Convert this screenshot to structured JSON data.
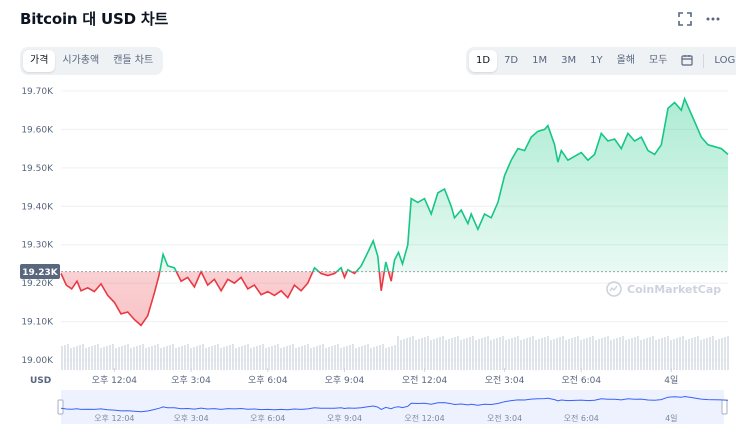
{
  "header": {
    "title": "Bitcoin 대 USD 차트",
    "fullscreen_icon": "expand-icon",
    "more_icon": "more-icon"
  },
  "view_tabs": [
    {
      "label": "가격",
      "active": true
    },
    {
      "label": "시가총액",
      "active": false
    },
    {
      "label": "캔들 차트",
      "active": false
    }
  ],
  "range_tabs": [
    {
      "label": "1D",
      "active": true
    },
    {
      "label": "7D",
      "active": false
    },
    {
      "label": "1M",
      "active": false
    },
    {
      "label": "3M",
      "active": false
    },
    {
      "label": "1Y",
      "active": false
    },
    {
      "label": "올해",
      "active": false
    },
    {
      "label": "모두",
      "active": false
    }
  ],
  "calendar_icon": "calendar-icon",
  "log_label": "LOG",
  "currency_label": "USD",
  "watermark": "CoinMarketCap",
  "colors": {
    "up": "#16c784",
    "down": "#ea3943",
    "reference": "#c0c4cc",
    "volume": "#cfd6e4",
    "navigator": "#3861fb"
  },
  "chart_data": {
    "type": "line",
    "reference_value": 19230,
    "reference_label": "19.23K",
    "ylim": [
      19000,
      19700
    ],
    "yticks": [
      19000,
      19100,
      19200,
      19300,
      19400,
      19500,
      19600,
      19700
    ],
    "ytick_labels": [
      "19.00K",
      "19.10K",
      "19.20K",
      "19.30K",
      "19.40K",
      "19.50K",
      "19.60K",
      "19.70K"
    ],
    "xticks": [
      {
        "t": 0.08,
        "label": "오후 12:04"
      },
      {
        "t": 0.195,
        "label": "오후 3:04"
      },
      {
        "t": 0.31,
        "label": "오후 6:04"
      },
      {
        "t": 0.425,
        "label": "오후 9:04"
      },
      {
        "t": 0.545,
        "label": "오전 12:04"
      },
      {
        "t": 0.665,
        "label": "오전 3:04"
      },
      {
        "t": 0.78,
        "label": "오전 6:04"
      },
      {
        "t": 0.915,
        "label": "4일"
      }
    ],
    "series": [
      {
        "t": 0.0,
        "v": 19225
      },
      {
        "t": 0.008,
        "v": 19195
      },
      {
        "t": 0.016,
        "v": 19185
      },
      {
        "t": 0.024,
        "v": 19205
      },
      {
        "t": 0.03,
        "v": 19180
      },
      {
        "t": 0.04,
        "v": 19188
      },
      {
        "t": 0.05,
        "v": 19178
      },
      {
        "t": 0.06,
        "v": 19198
      },
      {
        "t": 0.07,
        "v": 19168
      },
      {
        "t": 0.08,
        "v": 19150
      },
      {
        "t": 0.09,
        "v": 19120
      },
      {
        "t": 0.1,
        "v": 19125
      },
      {
        "t": 0.11,
        "v": 19105
      },
      {
        "t": 0.12,
        "v": 19090
      },
      {
        "t": 0.13,
        "v": 19115
      },
      {
        "t": 0.14,
        "v": 19175
      },
      {
        "t": 0.147,
        "v": 19220
      },
      {
        "t": 0.153,
        "v": 19275
      },
      {
        "t": 0.16,
        "v": 19245
      },
      {
        "t": 0.17,
        "v": 19240
      },
      {
        "t": 0.18,
        "v": 19205
      },
      {
        "t": 0.19,
        "v": 19215
      },
      {
        "t": 0.2,
        "v": 19190
      },
      {
        "t": 0.21,
        "v": 19230
      },
      {
        "t": 0.22,
        "v": 19195
      },
      {
        "t": 0.23,
        "v": 19210
      },
      {
        "t": 0.24,
        "v": 19180
      },
      {
        "t": 0.25,
        "v": 19210
      },
      {
        "t": 0.26,
        "v": 19200
      },
      {
        "t": 0.27,
        "v": 19215
      },
      {
        "t": 0.28,
        "v": 19185
      },
      {
        "t": 0.29,
        "v": 19195
      },
      {
        "t": 0.3,
        "v": 19170
      },
      {
        "t": 0.31,
        "v": 19178
      },
      {
        "t": 0.32,
        "v": 19168
      },
      {
        "t": 0.33,
        "v": 19180
      },
      {
        "t": 0.34,
        "v": 19162
      },
      {
        "t": 0.35,
        "v": 19195
      },
      {
        "t": 0.36,
        "v": 19180
      },
      {
        "t": 0.37,
        "v": 19200
      },
      {
        "t": 0.38,
        "v": 19240
      },
      {
        "t": 0.39,
        "v": 19225
      },
      {
        "t": 0.4,
        "v": 19220
      },
      {
        "t": 0.41,
        "v": 19225
      },
      {
        "t": 0.42,
        "v": 19240
      },
      {
        "t": 0.425,
        "v": 19215
      },
      {
        "t": 0.43,
        "v": 19235
      },
      {
        "t": 0.44,
        "v": 19225
      },
      {
        "t": 0.45,
        "v": 19245
      },
      {
        "t": 0.46,
        "v": 19280
      },
      {
        "t": 0.468,
        "v": 19310
      },
      {
        "t": 0.475,
        "v": 19270
      },
      {
        "t": 0.48,
        "v": 19180
      },
      {
        "t": 0.487,
        "v": 19255
      },
      {
        "t": 0.495,
        "v": 19205
      },
      {
        "t": 0.5,
        "v": 19260
      },
      {
        "t": 0.506,
        "v": 19280
      },
      {
        "t": 0.512,
        "v": 19250
      },
      {
        "t": 0.52,
        "v": 19300
      },
      {
        "t": 0.525,
        "v": 19420
      },
      {
        "t": 0.535,
        "v": 19410
      },
      {
        "t": 0.545,
        "v": 19420
      },
      {
        "t": 0.555,
        "v": 19380
      },
      {
        "t": 0.565,
        "v": 19435
      },
      {
        "t": 0.575,
        "v": 19445
      },
      {
        "t": 0.585,
        "v": 19400
      },
      {
        "t": 0.59,
        "v": 19370
      },
      {
        "t": 0.6,
        "v": 19390
      },
      {
        "t": 0.61,
        "v": 19355
      },
      {
        "t": 0.615,
        "v": 19380
      },
      {
        "t": 0.625,
        "v": 19340
      },
      {
        "t": 0.635,
        "v": 19380
      },
      {
        "t": 0.645,
        "v": 19370
      },
      {
        "t": 0.655,
        "v": 19410
      },
      {
        "t": 0.665,
        "v": 19480
      },
      {
        "t": 0.675,
        "v": 19520
      },
      {
        "t": 0.685,
        "v": 19550
      },
      {
        "t": 0.695,
        "v": 19545
      },
      {
        "t": 0.705,
        "v": 19580
      },
      {
        "t": 0.715,
        "v": 19595
      },
      {
        "t": 0.725,
        "v": 19600
      },
      {
        "t": 0.73,
        "v": 19610
      },
      {
        "t": 0.74,
        "v": 19560
      },
      {
        "t": 0.745,
        "v": 19515
      },
      {
        "t": 0.75,
        "v": 19545
      },
      {
        "t": 0.76,
        "v": 19520
      },
      {
        "t": 0.77,
        "v": 19530
      },
      {
        "t": 0.78,
        "v": 19540
      },
      {
        "t": 0.79,
        "v": 19520
      },
      {
        "t": 0.8,
        "v": 19535
      },
      {
        "t": 0.81,
        "v": 19590
      },
      {
        "t": 0.82,
        "v": 19570
      },
      {
        "t": 0.83,
        "v": 19575
      },
      {
        "t": 0.84,
        "v": 19550
      },
      {
        "t": 0.85,
        "v": 19590
      },
      {
        "t": 0.86,
        "v": 19570
      },
      {
        "t": 0.87,
        "v": 19580
      },
      {
        "t": 0.88,
        "v": 19545
      },
      {
        "t": 0.89,
        "v": 19535
      },
      {
        "t": 0.9,
        "v": 19560
      },
      {
        "t": 0.91,
        "v": 19655
      },
      {
        "t": 0.92,
        "v": 19670
      },
      {
        "t": 0.93,
        "v": 19650
      },
      {
        "t": 0.935,
        "v": 19680
      },
      {
        "t": 0.945,
        "v": 19640
      },
      {
        "t": 0.955,
        "v": 19600
      },
      {
        "t": 0.96,
        "v": 19580
      },
      {
        "t": 0.97,
        "v": 19560
      },
      {
        "t": 0.98,
        "v": 19555
      },
      {
        "t": 0.99,
        "v": 19550
      },
      {
        "t": 1.0,
        "v": 19535
      }
    ]
  }
}
